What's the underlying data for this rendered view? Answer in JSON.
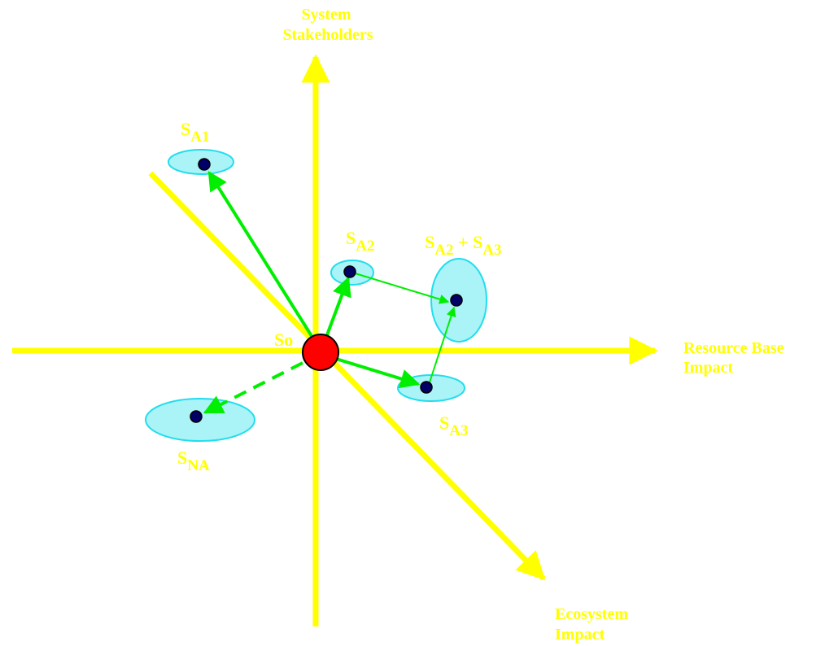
{
  "colors": {
    "axis": "#ffff00",
    "arrow": "#00ee00",
    "ellipse_fill": "#aaf3f7",
    "ellipse_stroke": "#22ddee",
    "point": "#000066",
    "origin": "#ff0000",
    "label": "#ffff00"
  },
  "axes": {
    "vertical_label_line1": "System",
    "vertical_label_line2": "Stakeholders",
    "horizontal_label_line1": "Resource Base",
    "horizontal_label_line2": "Impact",
    "diagonal_label_line1": "Ecosystem",
    "diagonal_label_line2": "Impact"
  },
  "states": {
    "origin": {
      "label": "So"
    },
    "a1": {
      "main": "S",
      "sub": "A1"
    },
    "a2": {
      "main": "S",
      "sub": "A2"
    },
    "a3": {
      "main": "S",
      "sub": "A3"
    },
    "na": {
      "main": "S",
      "sub": "NA"
    },
    "combined": {
      "main1": "S",
      "sub1": "A2",
      "plus": " + ",
      "main2": "S",
      "sub2": "A3"
    }
  }
}
